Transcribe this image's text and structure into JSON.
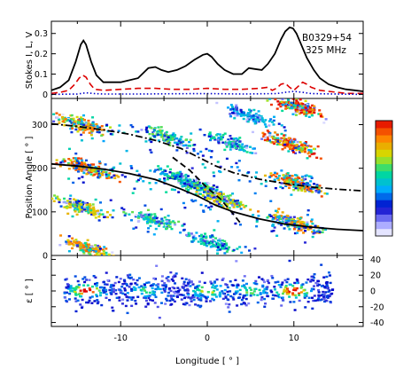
{
  "chart_data": [
    {
      "type": "line",
      "panel": "profile",
      "annotation": [
        "B0329+54",
        "325 MHz"
      ],
      "ylabel": "Stokes I, L, V",
      "ylim": [
        -0.02,
        0.36
      ],
      "yticks": [
        "0",
        "0.1",
        "0.2",
        "0.3"
      ],
      "xlim": [
        -18,
        18
      ],
      "series": [
        {
          "name": "I",
          "style": "solid",
          "color": "#000000",
          "x": [
            -18,
            -17,
            -16,
            -15.2,
            -14.6,
            -14.3,
            -14,
            -13.4,
            -12.8,
            -12,
            -10,
            -8,
            -6.8,
            -6,
            -5.3,
            -4.5,
            -3.5,
            -2.5,
            -1.5,
            -0.5,
            0,
            0.5,
            1.2,
            2,
            3,
            4,
            4.8,
            5.5,
            6.3,
            7,
            7.8,
            8.5,
            9,
            9.5,
            9.9,
            10.3,
            10.8,
            11.5,
            12.3,
            13,
            14,
            15,
            16,
            17,
            18
          ],
          "y": [
            0.02,
            0.035,
            0.07,
            0.16,
            0.245,
            0.265,
            0.245,
            0.16,
            0.095,
            0.06,
            0.06,
            0.08,
            0.13,
            0.135,
            0.12,
            0.11,
            0.12,
            0.14,
            0.17,
            0.195,
            0.2,
            0.185,
            0.15,
            0.12,
            0.1,
            0.1,
            0.13,
            0.125,
            0.12,
            0.15,
            0.2,
            0.27,
            0.31,
            0.33,
            0.325,
            0.3,
            0.25,
            0.18,
            0.12,
            0.08,
            0.05,
            0.035,
            0.025,
            0.02,
            0.015
          ]
        },
        {
          "name": "L",
          "style": "dashed",
          "color": "#dd0000",
          "x": [
            -18,
            -17,
            -16,
            -15.3,
            -14.8,
            -14.4,
            -14,
            -13.5,
            -13,
            -12,
            -10,
            -8,
            -6,
            -4,
            -2,
            0,
            2,
            4,
            6,
            7,
            7.5,
            8,
            8.5,
            9,
            9.5,
            10,
            10.5,
            11,
            11.5,
            12,
            13,
            14,
            15,
            16,
            17,
            18
          ],
          "y": [
            0.005,
            0.01,
            0.02,
            0.05,
            0.08,
            0.095,
            0.085,
            0.05,
            0.025,
            0.02,
            0.025,
            0.03,
            0.03,
            0.025,
            0.025,
            0.03,
            0.025,
            0.025,
            0.03,
            0.035,
            0.02,
            0.03,
            0.05,
            0.055,
            0.035,
            0.02,
            0.04,
            0.06,
            0.05,
            0.035,
            0.02,
            0.015,
            0.01,
            0.005,
            0.005,
            0.005
          ]
        },
        {
          "name": "V",
          "style": "dotted",
          "color": "#0000cc",
          "x": [
            -18,
            -15,
            -14,
            -13,
            -12,
            -8,
            -4,
            0,
            4,
            8,
            9,
            10,
            11,
            12,
            15,
            18
          ],
          "y": [
            0,
            0.002,
            0.008,
            0.004,
            0.002,
            0.002,
            0.003,
            0.004,
            0.002,
            0.004,
            0.01,
            0.015,
            0.01,
            0.004,
            0.002,
            0
          ]
        }
      ]
    },
    {
      "type": "heatmap",
      "panel": "position-angle",
      "ylabel": "Position Angle [ ° ]",
      "ylim": [
        0,
        360
      ],
      "xlim": [
        -18,
        18
      ],
      "yticks": [
        "0",
        "100",
        "200",
        "300"
      ],
      "intensity_scale": "white-blue-cyan-green-yellow-red",
      "blobs": [
        {
          "lon": -14.5,
          "pa": 300,
          "intensity": 0.85
        },
        {
          "lon": -14,
          "pa": 200,
          "intensity": 0.9
        },
        {
          "lon": -14.5,
          "pa": 110,
          "intensity": 0.75
        },
        {
          "lon": -14,
          "pa": 18,
          "intensity": 0.85
        },
        {
          "lon": -6,
          "pa": 80,
          "intensity": 0.6
        },
        {
          "lon": -4.5,
          "pa": 270,
          "intensity": 0.6
        },
        {
          "lon": -3,
          "pa": 175,
          "intensity": 0.55
        },
        {
          "lon": -1,
          "pa": 160,
          "intensity": 0.6
        },
        {
          "lon": 1.5,
          "pa": 130,
          "intensity": 0.75
        },
        {
          "lon": 0.5,
          "pa": 30,
          "intensity": 0.55
        },
        {
          "lon": 2.5,
          "pa": 260,
          "intensity": 0.55
        },
        {
          "lon": 5,
          "pa": 320,
          "intensity": 0.45
        },
        {
          "lon": 9.5,
          "pa": 255,
          "intensity": 0.95
        },
        {
          "lon": 10.5,
          "pa": 340,
          "intensity": 1.0
        },
        {
          "lon": 10.5,
          "pa": 165,
          "intensity": 0.9
        },
        {
          "lon": 10,
          "pa": 75,
          "intensity": 0.85
        }
      ],
      "fit_curves": [
        {
          "style": "solid",
          "lon": [
            -18,
            -15,
            -12,
            -9,
            -6,
            -3,
            -1,
            0,
            1,
            3,
            6,
            9,
            12,
            15,
            18
          ],
          "pa": [
            210,
            205,
            198,
            188,
            174,
            152,
            135,
            125,
            115,
            100,
            84,
            72,
            65,
            60,
            57
          ]
        },
        {
          "style": "dash-dot",
          "lon": [
            -18,
            -15,
            -12,
            -9,
            -6,
            -3,
            -1,
            0,
            1,
            3,
            6,
            9,
            12,
            15,
            18
          ],
          "pa": [
            302,
            296,
            288,
            278,
            264,
            245,
            225,
            215,
            205,
            190,
            175,
            165,
            157,
            152,
            148
          ]
        },
        {
          "style": "dashed",
          "lon": [
            -4,
            -2,
            0,
            1.5,
            3,
            4
          ],
          "pa": [
            225,
            195,
            155,
            130,
            95,
            70
          ]
        }
      ]
    },
    {
      "type": "heatmap",
      "panel": "ellipticity",
      "ylabel": "ε [ ° ]",
      "ylim": [
        -45,
        45
      ],
      "xlim": [
        -18,
        18
      ],
      "yticks": [
        "40",
        "20",
        "0",
        "-20",
        "-40"
      ],
      "xlabel": "Longitude [ ° ]",
      "xticks": [
        "-10",
        "0",
        "10"
      ],
      "blobs": [
        {
          "lon": -14,
          "eps": 0,
          "intensity": 0.95
        },
        {
          "lon": -7,
          "eps": 0,
          "intensity": 0.4
        },
        {
          "lon": 0,
          "eps": 0,
          "intensity": 0.55
        },
        {
          "lon": 5,
          "eps": 0,
          "intensity": 0.45
        },
        {
          "lon": 10,
          "eps": 0,
          "intensity": 1.0
        }
      ]
    }
  ]
}
